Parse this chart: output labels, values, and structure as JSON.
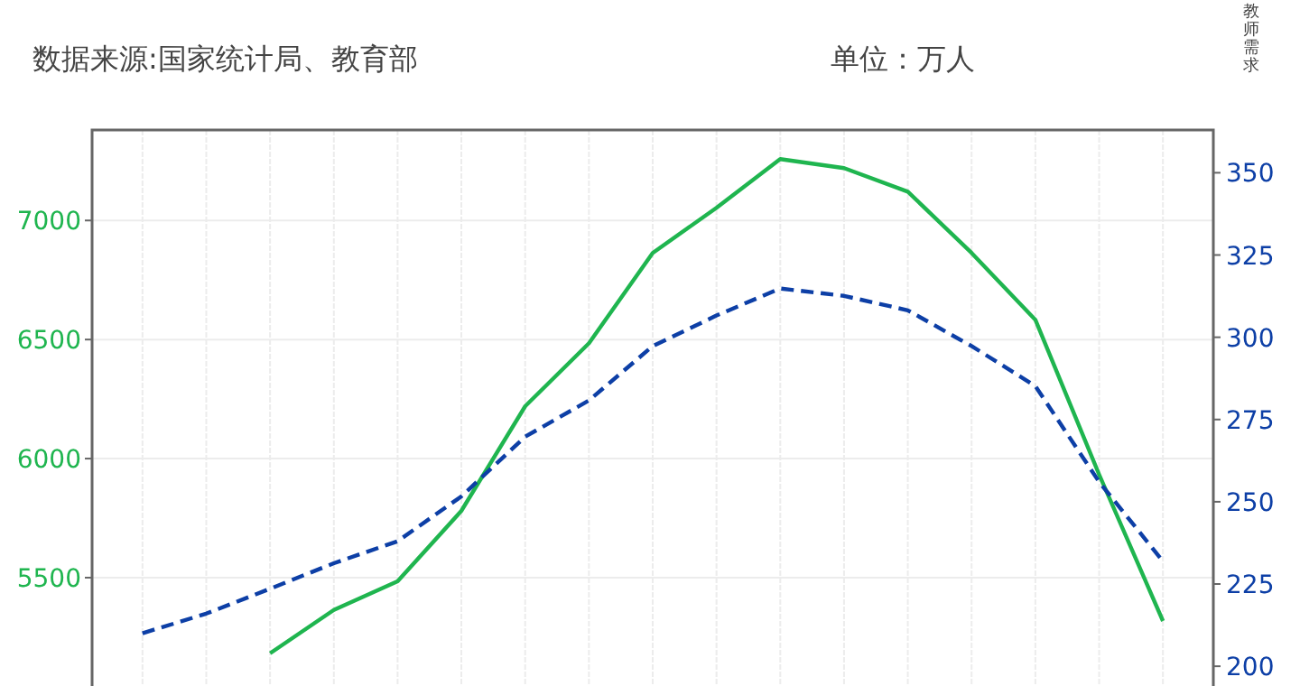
{
  "chart_data": {
    "type": "line",
    "y2label": "教师需求",
    "annotations": [
      "数据来源:国家统计局、教育部",
      "单位：万人"
    ],
    "categories": [
      null,
      null,
      null,
      null,
      null,
      null,
      null,
      null,
      null,
      null,
      null,
      null,
      null,
      null,
      null,
      null,
      null
    ],
    "series": [
      {
        "color": "#1fb54f",
        "line_style": "solid",
        "values": [
          null,
          null,
          5182,
          5364,
          5485,
          5780,
          6220,
          6485,
          6864,
          7053,
          7258,
          7220,
          7121,
          6864,
          6583,
          5932,
          5318
        ]
      },
      {
        "color": "#0d3fa6",
        "line_style": "dashed",
        "axis": "y2",
        "values": [
          210,
          216,
          223.6,
          231.3,
          238,
          251.6,
          269.8,
          280.8,
          297.3,
          306.6,
          314.8,
          312.6,
          308.2,
          297.3,
          285.2,
          256,
          231.9
        ]
      }
    ],
    "ylim": [
      5045,
      7380
    ],
    "yticks": [
      5500,
      6000,
      6500,
      7000
    ],
    "y2lim": [
      194,
      363
    ],
    "y2ticks": [
      200,
      225,
      250,
      275,
      300,
      325,
      350
    ],
    "grid": true,
    "tick_labels": "y",
    "marker": "none"
  }
}
